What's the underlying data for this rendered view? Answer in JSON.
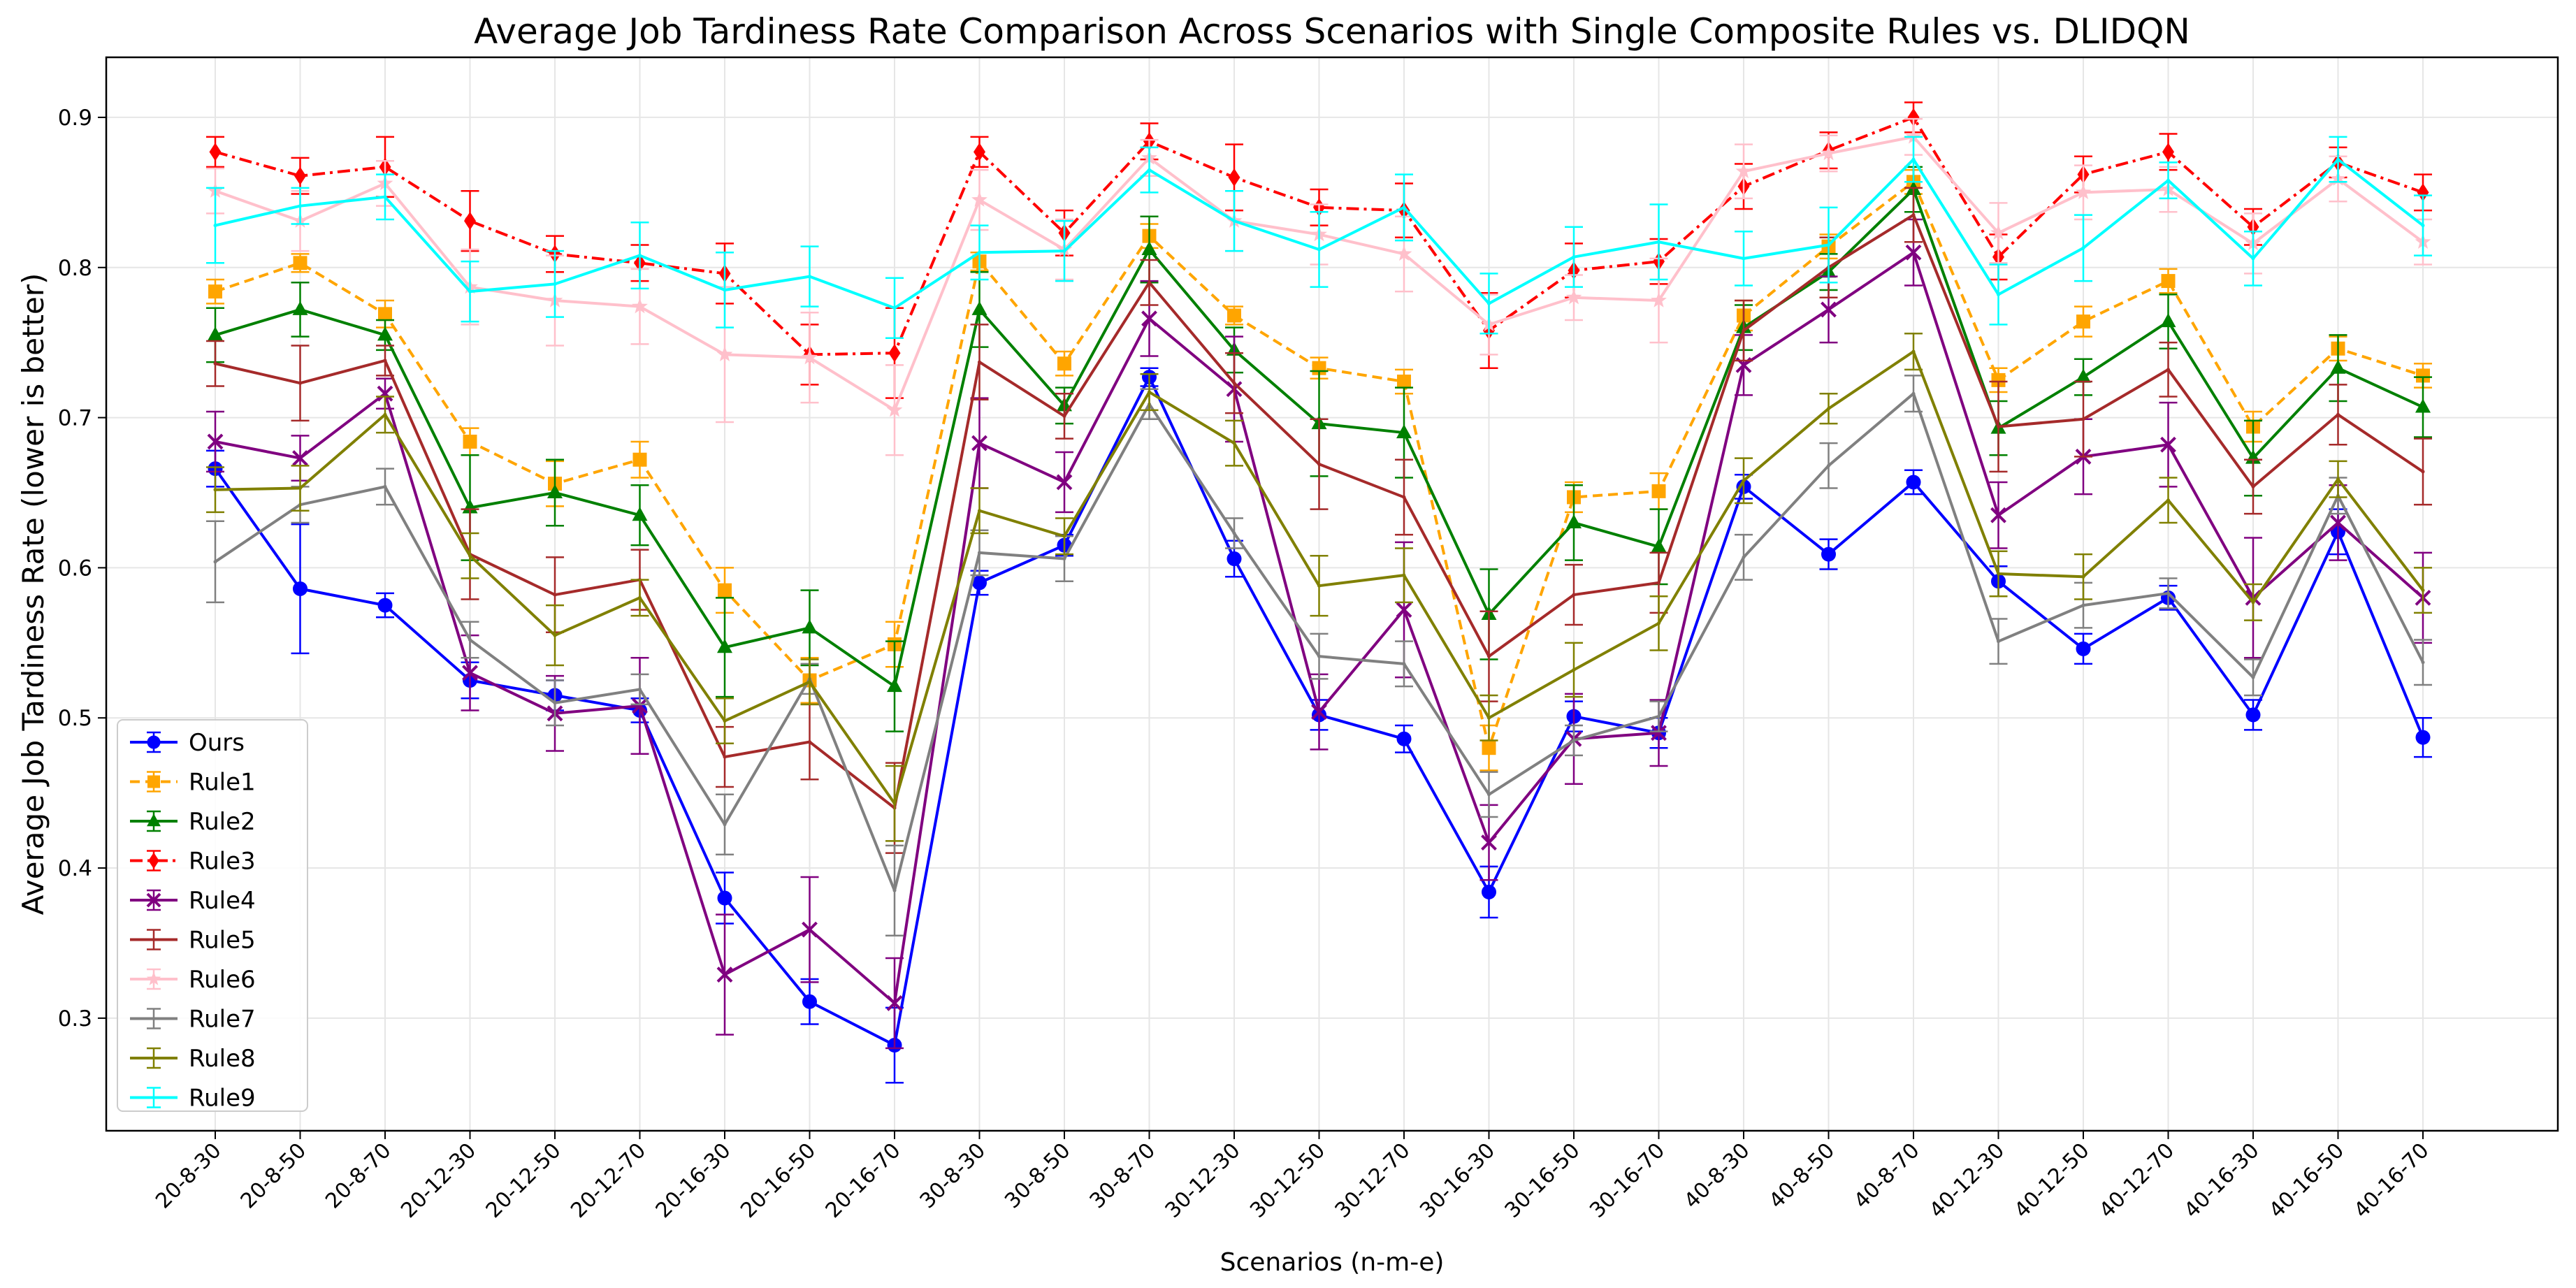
{
  "chart_data": {
    "type": "line",
    "title": "Average Job Tardiness Rate Comparison Across Scenarios with Single Composite Rules vs. DLIDQN",
    "xlabel": "Scenarios (n-m-e)",
    "ylabel": "Average Job Tardiness Rate (lower is better)",
    "ylim": [
      0.225,
      0.94
    ],
    "yticks": [
      "0.3",
      "0.4",
      "0.5",
      "0.6",
      "0.7",
      "0.8",
      "0.9"
    ],
    "ytick_values": [
      0.3,
      0.4,
      0.5,
      0.6,
      0.7,
      0.8,
      0.9
    ],
    "grid": true,
    "legend_position": "lower-left",
    "categories": [
      "20-8-30",
      "20-8-50",
      "20-8-70",
      "20-12-30",
      "20-12-50",
      "20-12-70",
      "20-16-30",
      "20-16-50",
      "20-16-70",
      "30-8-30",
      "30-8-50",
      "30-8-70",
      "30-12-30",
      "30-12-50",
      "30-12-70",
      "30-16-30",
      "30-16-50",
      "30-16-70",
      "40-8-30",
      "40-8-50",
      "40-8-70",
      "40-12-30",
      "40-12-50",
      "40-12-70",
      "40-16-30",
      "40-16-50",
      "40-16-70"
    ],
    "series": [
      {
        "name": "Ours",
        "color": "#0000ff",
        "marker": "circle",
        "dash": "solid",
        "values": [
          0.666,
          0.586,
          0.575,
          0.525,
          0.515,
          0.505,
          0.38,
          0.311,
          0.282,
          0.59,
          0.615,
          0.727,
          0.606,
          0.502,
          0.486,
          0.384,
          0.501,
          0.49,
          0.654,
          0.609,
          0.657,
          0.591,
          0.546,
          0.58,
          0.502,
          0.624,
          0.487
        ],
        "errors": [
          0.012,
          0.043,
          0.008,
          0.012,
          0.01,
          0.008,
          0.017,
          0.015,
          0.025,
          0.008,
          0.007,
          0.006,
          0.012,
          0.01,
          0.009,
          0.017,
          0.01,
          0.01,
          0.008,
          0.01,
          0.008,
          0.01,
          0.01,
          0.008,
          0.01,
          0.015,
          0.013
        ]
      },
      {
        "name": "Rule1",
        "color": "#ffa500",
        "marker": "square",
        "dash": "dashed",
        "values": [
          0.784,
          0.803,
          0.769,
          0.684,
          0.656,
          0.672,
          0.585,
          0.525,
          0.549,
          0.804,
          0.736,
          0.821,
          0.768,
          0.733,
          0.724,
          0.48,
          0.647,
          0.651,
          0.768,
          0.814,
          0.857,
          0.725,
          0.764,
          0.791,
          0.694,
          0.746,
          0.728
        ],
        "errors": [
          0.008,
          0.006,
          0.009,
          0.009,
          0.015,
          0.012,
          0.015,
          0.015,
          0.015,
          0.006,
          0.008,
          0.008,
          0.006,
          0.007,
          0.008,
          0.015,
          0.01,
          0.012,
          0.01,
          0.008,
          0.008,
          0.008,
          0.01,
          0.008,
          0.01,
          0.008,
          0.008
        ]
      },
      {
        "name": "Rule2",
        "color": "#008000",
        "marker": "triangle",
        "dash": "solid",
        "values": [
          0.755,
          0.772,
          0.755,
          0.64,
          0.65,
          0.635,
          0.547,
          0.56,
          0.521,
          0.772,
          0.708,
          0.812,
          0.745,
          0.696,
          0.69,
          0.569,
          0.63,
          0.614,
          0.76,
          0.797,
          0.852,
          0.693,
          0.727,
          0.764,
          0.673,
          0.733,
          0.707
        ],
        "errors": [
          0.018,
          0.018,
          0.01,
          0.035,
          0.022,
          0.02,
          0.033,
          0.025,
          0.03,
          0.025,
          0.012,
          0.022,
          0.015,
          0.035,
          0.03,
          0.03,
          0.025,
          0.025,
          0.015,
          0.012,
          0.015,
          0.018,
          0.012,
          0.018,
          0.025,
          0.022,
          0.02
        ]
      },
      {
        "name": "Rule3",
        "color": "#ff0000",
        "marker": "diamond",
        "dash": "dashdot",
        "values": [
          0.877,
          0.861,
          0.867,
          0.831,
          0.809,
          0.803,
          0.796,
          0.742,
          0.743,
          0.877,
          0.823,
          0.884,
          0.86,
          0.84,
          0.838,
          0.758,
          0.798,
          0.804,
          0.854,
          0.878,
          0.9,
          0.807,
          0.862,
          0.877,
          0.827,
          0.87,
          0.85
        ],
        "errors": [
          0.01,
          0.012,
          0.02,
          0.02,
          0.012,
          0.012,
          0.02,
          0.02,
          0.03,
          0.01,
          0.015,
          0.012,
          0.022,
          0.012,
          0.018,
          0.025,
          0.018,
          0.015,
          0.015,
          0.012,
          0.01,
          0.015,
          0.012,
          0.012,
          0.012,
          0.01,
          0.012
        ]
      },
      {
        "name": "Rule4",
        "color": "#800080",
        "marker": "x",
        "dash": "solid",
        "values": [
          0.684,
          0.673,
          0.716,
          0.53,
          0.503,
          0.508,
          0.329,
          0.359,
          0.31,
          0.683,
          0.657,
          0.766,
          0.719,
          0.504,
          0.572,
          0.417,
          0.486,
          0.49,
          0.735,
          0.772,
          0.81,
          0.635,
          0.674,
          0.682,
          0.58,
          0.63,
          0.58
        ],
        "errors": [
          0.02,
          0.015,
          0.01,
          0.025,
          0.025,
          0.032,
          0.04,
          0.035,
          0.03,
          0.03,
          0.02,
          0.025,
          0.035,
          0.025,
          0.045,
          0.025,
          0.03,
          0.022,
          0.02,
          0.022,
          0.022,
          0.022,
          0.025,
          0.028,
          0.04,
          0.025,
          0.03
        ]
      },
      {
        "name": "Rule5",
        "color": "#a52a2a",
        "marker": "none",
        "dash": "solid",
        "values": [
          0.736,
          0.723,
          0.738,
          0.609,
          0.582,
          0.592,
          0.474,
          0.484,
          0.44,
          0.737,
          0.701,
          0.79,
          0.723,
          0.669,
          0.647,
          0.541,
          0.582,
          0.59,
          0.758,
          0.8,
          0.835,
          0.694,
          0.699,
          0.732,
          0.654,
          0.702,
          0.664
        ],
        "errors": [
          0.015,
          0.025,
          0.01,
          0.03,
          0.025,
          0.02,
          0.02,
          0.025,
          0.03,
          0.025,
          0.015,
          0.015,
          0.02,
          0.03,
          0.025,
          0.03,
          0.02,
          0.02,
          0.02,
          0.02,
          0.018,
          0.03,
          0.025,
          0.018,
          0.018,
          0.02,
          0.022
        ]
      },
      {
        "name": "Rule6",
        "color": "#ffc0cb",
        "marker": "star",
        "dash": "solid",
        "values": [
          0.851,
          0.831,
          0.856,
          0.787,
          0.778,
          0.774,
          0.742,
          0.74,
          0.705,
          0.845,
          0.812,
          0.873,
          0.831,
          0.822,
          0.809,
          0.762,
          0.78,
          0.778,
          0.864,
          0.876,
          0.887,
          0.823,
          0.85,
          0.852,
          0.816,
          0.859,
          0.817
        ],
        "errors": [
          0.015,
          0.02,
          0.015,
          0.025,
          0.03,
          0.025,
          0.045,
          0.03,
          0.03,
          0.02,
          0.02,
          0.012,
          0.02,
          0.02,
          0.025,
          0.02,
          0.015,
          0.028,
          0.018,
          0.012,
          0.012,
          0.02,
          0.018,
          0.015,
          0.02,
          0.015,
          0.015
        ]
      },
      {
        "name": "Rule7",
        "color": "#808080",
        "marker": "none",
        "dash": "solid",
        "values": [
          0.604,
          0.642,
          0.654,
          0.552,
          0.51,
          0.519,
          0.429,
          0.526,
          0.385,
          0.61,
          0.606,
          0.709,
          0.623,
          0.541,
          0.536,
          0.449,
          0.485,
          0.501,
          0.607,
          0.668,
          0.716,
          0.551,
          0.575,
          0.583,
          0.527,
          0.648,
          0.537
        ],
        "errors": [
          0.027,
          0.012,
          0.012,
          0.012,
          0.015,
          0.01,
          0.02,
          0.01,
          0.03,
          0.015,
          0.015,
          0.01,
          0.01,
          0.015,
          0.015,
          0.015,
          0.01,
          0.01,
          0.015,
          0.015,
          0.012,
          0.015,
          0.015,
          0.01,
          0.012,
          0.012,
          0.015
        ]
      },
      {
        "name": "Rule8",
        "color": "#808000",
        "marker": "none",
        "dash": "solid",
        "values": [
          0.652,
          0.653,
          0.702,
          0.608,
          0.555,
          0.58,
          0.498,
          0.524,
          0.443,
          0.638,
          0.621,
          0.717,
          0.683,
          0.588,
          0.595,
          0.5,
          0.532,
          0.563,
          0.658,
          0.706,
          0.744,
          0.596,
          0.594,
          0.645,
          0.577,
          0.659,
          0.585
        ],
        "errors": [
          0.015,
          0.015,
          0.012,
          0.015,
          0.02,
          0.012,
          0.015,
          0.015,
          0.025,
          0.015,
          0.012,
          0.012,
          0.015,
          0.02,
          0.018,
          0.015,
          0.018,
          0.018,
          0.015,
          0.01,
          0.012,
          0.015,
          0.015,
          0.015,
          0.012,
          0.012,
          0.015
        ]
      },
      {
        "name": "Rule9",
        "color": "#00ffff",
        "marker": "none",
        "dash": "solid",
        "values": [
          0.828,
          0.841,
          0.847,
          0.784,
          0.789,
          0.808,
          0.785,
          0.794,
          0.773,
          0.81,
          0.811,
          0.865,
          0.831,
          0.812,
          0.84,
          0.776,
          0.807,
          0.817,
          0.806,
          0.815,
          0.872,
          0.782,
          0.813,
          0.858,
          0.806,
          0.872,
          0.828
        ],
        "errors": [
          0.025,
          0.012,
          0.015,
          0.02,
          0.022,
          0.022,
          0.025,
          0.02,
          0.02,
          0.018,
          0.02,
          0.015,
          0.02,
          0.025,
          0.022,
          0.02,
          0.02,
          0.025,
          0.018,
          0.025,
          0.015,
          0.02,
          0.022,
          0.012,
          0.018,
          0.015,
          0.02
        ]
      }
    ]
  }
}
